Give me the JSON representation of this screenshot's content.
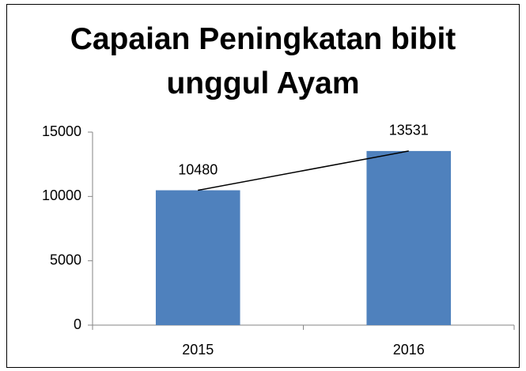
{
  "chart_data": {
    "type": "bar",
    "title": "Capaian Peningkatan bibit unggul Ayam",
    "categories": [
      "2015",
      "2016"
    ],
    "values": [
      10480,
      13531
    ],
    "color": "#4f81bd",
    "line_color": "#000000",
    "ylim": [
      0,
      15000
    ],
    "yticks": [
      0,
      5000,
      10000,
      15000
    ],
    "grid": false
  }
}
